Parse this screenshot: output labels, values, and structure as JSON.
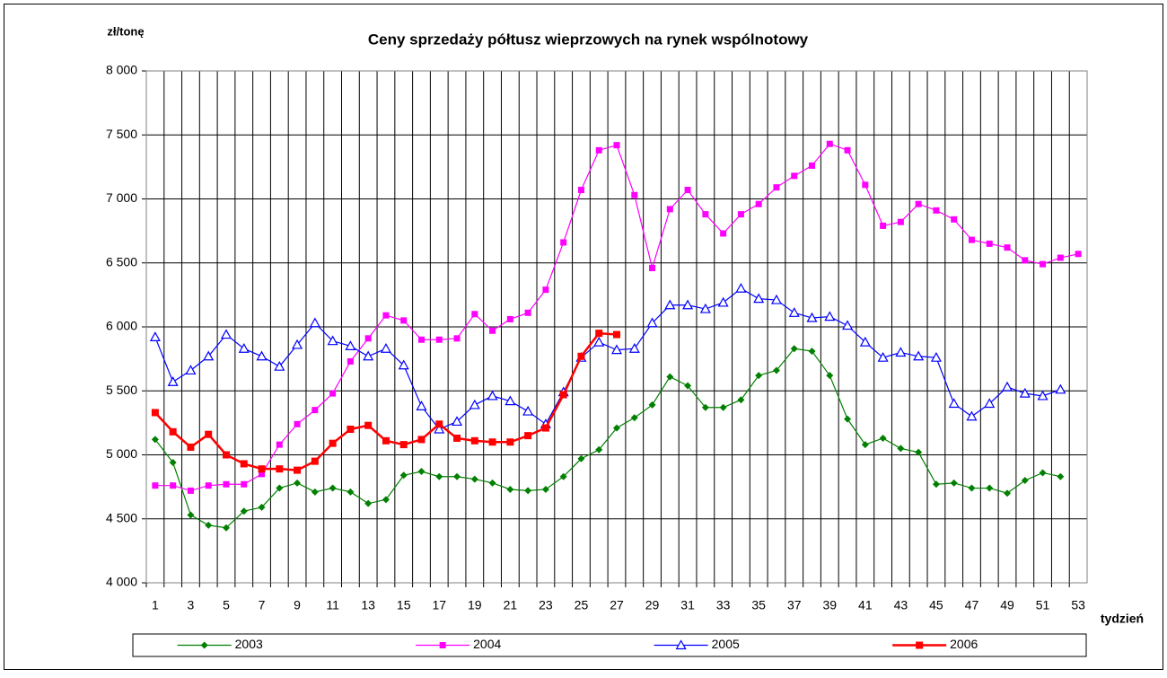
{
  "chart_data": {
    "type": "line",
    "title": "Ceny sprzedaży półtusz wieprzowych na rynek wspólnotowy",
    "y_label": "zł/tonę",
    "x_label": "tydzień",
    "categories": [
      1,
      null,
      3,
      null,
      5,
      null,
      7,
      null,
      9,
      null,
      11,
      null,
      13,
      null,
      15,
      null,
      17,
      null,
      19,
      null,
      21,
      null,
      23,
      null,
      25,
      null,
      27,
      null,
      29,
      null,
      31,
      null,
      33,
      null,
      35,
      null,
      37,
      null,
      39,
      null,
      41,
      null,
      43,
      null,
      45,
      null,
      47,
      null,
      49,
      null,
      51,
      null,
      53
    ],
    "ylim": [
      4000,
      8000
    ],
    "yticks": [
      {
        "value": 4000,
        "label": "4 000"
      },
      {
        "value": 4500,
        "label": "4 500"
      },
      {
        "value": 5000,
        "label": "5 000"
      },
      {
        "value": 5500,
        "label": "5 500"
      },
      {
        "value": 6000,
        "label": "6 000"
      },
      {
        "value": 6500,
        "label": "6 500"
      },
      {
        "value": 7000,
        "label": "7 000"
      },
      {
        "value": 7500,
        "label": "7 500"
      },
      {
        "value": 8000,
        "label": "8 000"
      }
    ],
    "grid": true,
    "legend": "bottom",
    "series": [
      {
        "name": "2003",
        "color": "#008000",
        "marker": "diamond",
        "values": [
          5120,
          4940,
          4530,
          4450,
          4430,
          4560,
          4590,
          4740,
          4780,
          4710,
          4740,
          4710,
          4620,
          4650,
          4840,
          4870,
          4830,
          4830,
          4810,
          4780,
          4730,
          4720,
          4730,
          4830,
          4970,
          5040,
          5210,
          5290,
          5390,
          5610,
          5540,
          5370,
          5370,
          5430,
          5620,
          5660,
          5830,
          5810,
          5620,
          5280,
          5080,
          5130,
          5050,
          5020,
          4770,
          4780,
          4740,
          4740,
          4700,
          4800,
          4860,
          4830,
          null
        ]
      },
      {
        "name": "2004",
        "color": "#ff00ff",
        "marker": "square",
        "values": [
          4760,
          4760,
          4720,
          4760,
          4770,
          4770,
          4850,
          5080,
          5240,
          5350,
          5480,
          5730,
          5910,
          6090,
          6050,
          5900,
          5900,
          5910,
          6100,
          5970,
          6060,
          6110,
          6290,
          6660,
          7070,
          7380,
          7420,
          7030,
          6460,
          6920,
          7070,
          6880,
          6730,
          6880,
          6960,
          7090,
          7180,
          7260,
          7430,
          7380,
          7110,
          6790,
          6820,
          6960,
          6910,
          6840,
          6680,
          6650,
          6620,
          6520,
          6490,
          6540,
          6570
        ]
      },
      {
        "name": "2005",
        "color": "#0000ff",
        "marker": "triangle",
        "values": [
          5920,
          5570,
          5660,
          5770,
          5940,
          5830,
          5770,
          5690,
          5860,
          6030,
          5890,
          5850,
          5770,
          5830,
          5700,
          5380,
          5200,
          5260,
          5390,
          5460,
          5420,
          5340,
          5240,
          5490,
          5760,
          5880,
          5820,
          5830,
          6030,
          6170,
          6170,
          6140,
          6190,
          6300,
          6220,
          6210,
          6110,
          6070,
          6080,
          6010,
          5880,
          5760,
          5800,
          5770,
          5760,
          5400,
          5300,
          5400,
          5530,
          5480,
          5460,
          5510,
          null
        ]
      },
      {
        "name": "2006",
        "color": "#ff0000",
        "marker": "square-bold",
        "values": [
          5330,
          5180,
          5060,
          5160,
          5000,
          4930,
          4890,
          4890,
          4880,
          4950,
          5090,
          5200,
          5230,
          5110,
          5080,
          5120,
          5240,
          5130,
          5110,
          5100,
          5100,
          5150,
          5210,
          5470,
          5770,
          5950,
          5940,
          null,
          null,
          null,
          null,
          null,
          null,
          null,
          null,
          null,
          null,
          null,
          null,
          null,
          null,
          null,
          null,
          null,
          null,
          null,
          null,
          null,
          null,
          null,
          null,
          null,
          null
        ]
      }
    ]
  }
}
